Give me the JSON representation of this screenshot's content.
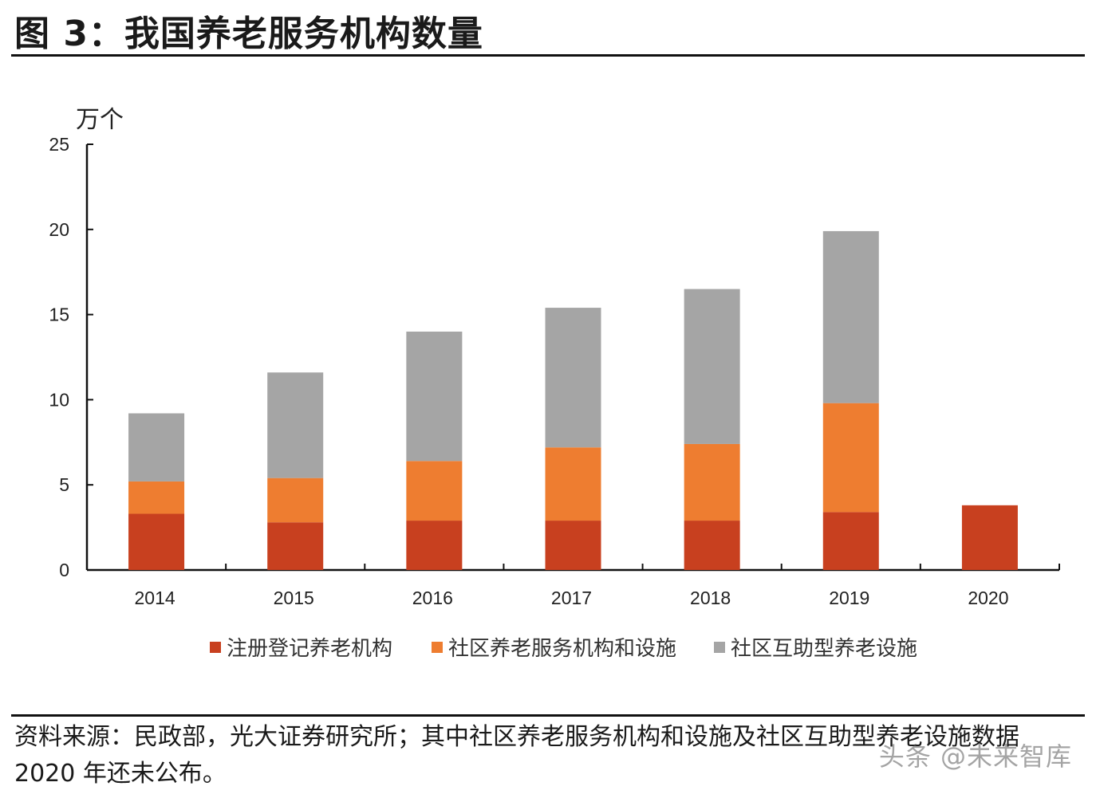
{
  "title": "图 3：我国养老服务机构数量",
  "source_text": "资料来源：民政部，光大证券研究所；其中社区养老服务机构和设施及社区互助型养老设施数据 2020 年还未公布。",
  "watermark": "头条 @未来智库",
  "colors": {
    "registered": "#c8401f",
    "community_service": "#ee7d30",
    "mutual_aid": "#a5a5a5",
    "axis": "#111111"
  },
  "chart_data": {
    "type": "bar",
    "stacked": true,
    "categories": [
      "2014",
      "2015",
      "2016",
      "2017",
      "2018",
      "2019",
      "2020"
    ],
    "series": [
      {
        "name": "注册登记养老机构",
        "color": "#c8401f",
        "values": [
          3.3,
          2.8,
          2.9,
          2.9,
          2.9,
          3.4,
          3.8
        ]
      },
      {
        "name": "社区养老服务机构和设施",
        "color": "#ee7d30",
        "values": [
          1.9,
          2.6,
          3.5,
          4.3,
          4.5,
          6.4,
          null
        ]
      },
      {
        "name": "社区互助型养老设施",
        "color": "#a5a5a5",
        "values": [
          4.0,
          6.2,
          7.6,
          8.2,
          9.1,
          10.1,
          null
        ]
      }
    ],
    "ylabel": "万个",
    "ylim": [
      0,
      25
    ],
    "yticks": [
      0,
      5,
      10,
      15,
      20,
      25
    ],
    "grid": false,
    "legend_position": "bottom"
  }
}
